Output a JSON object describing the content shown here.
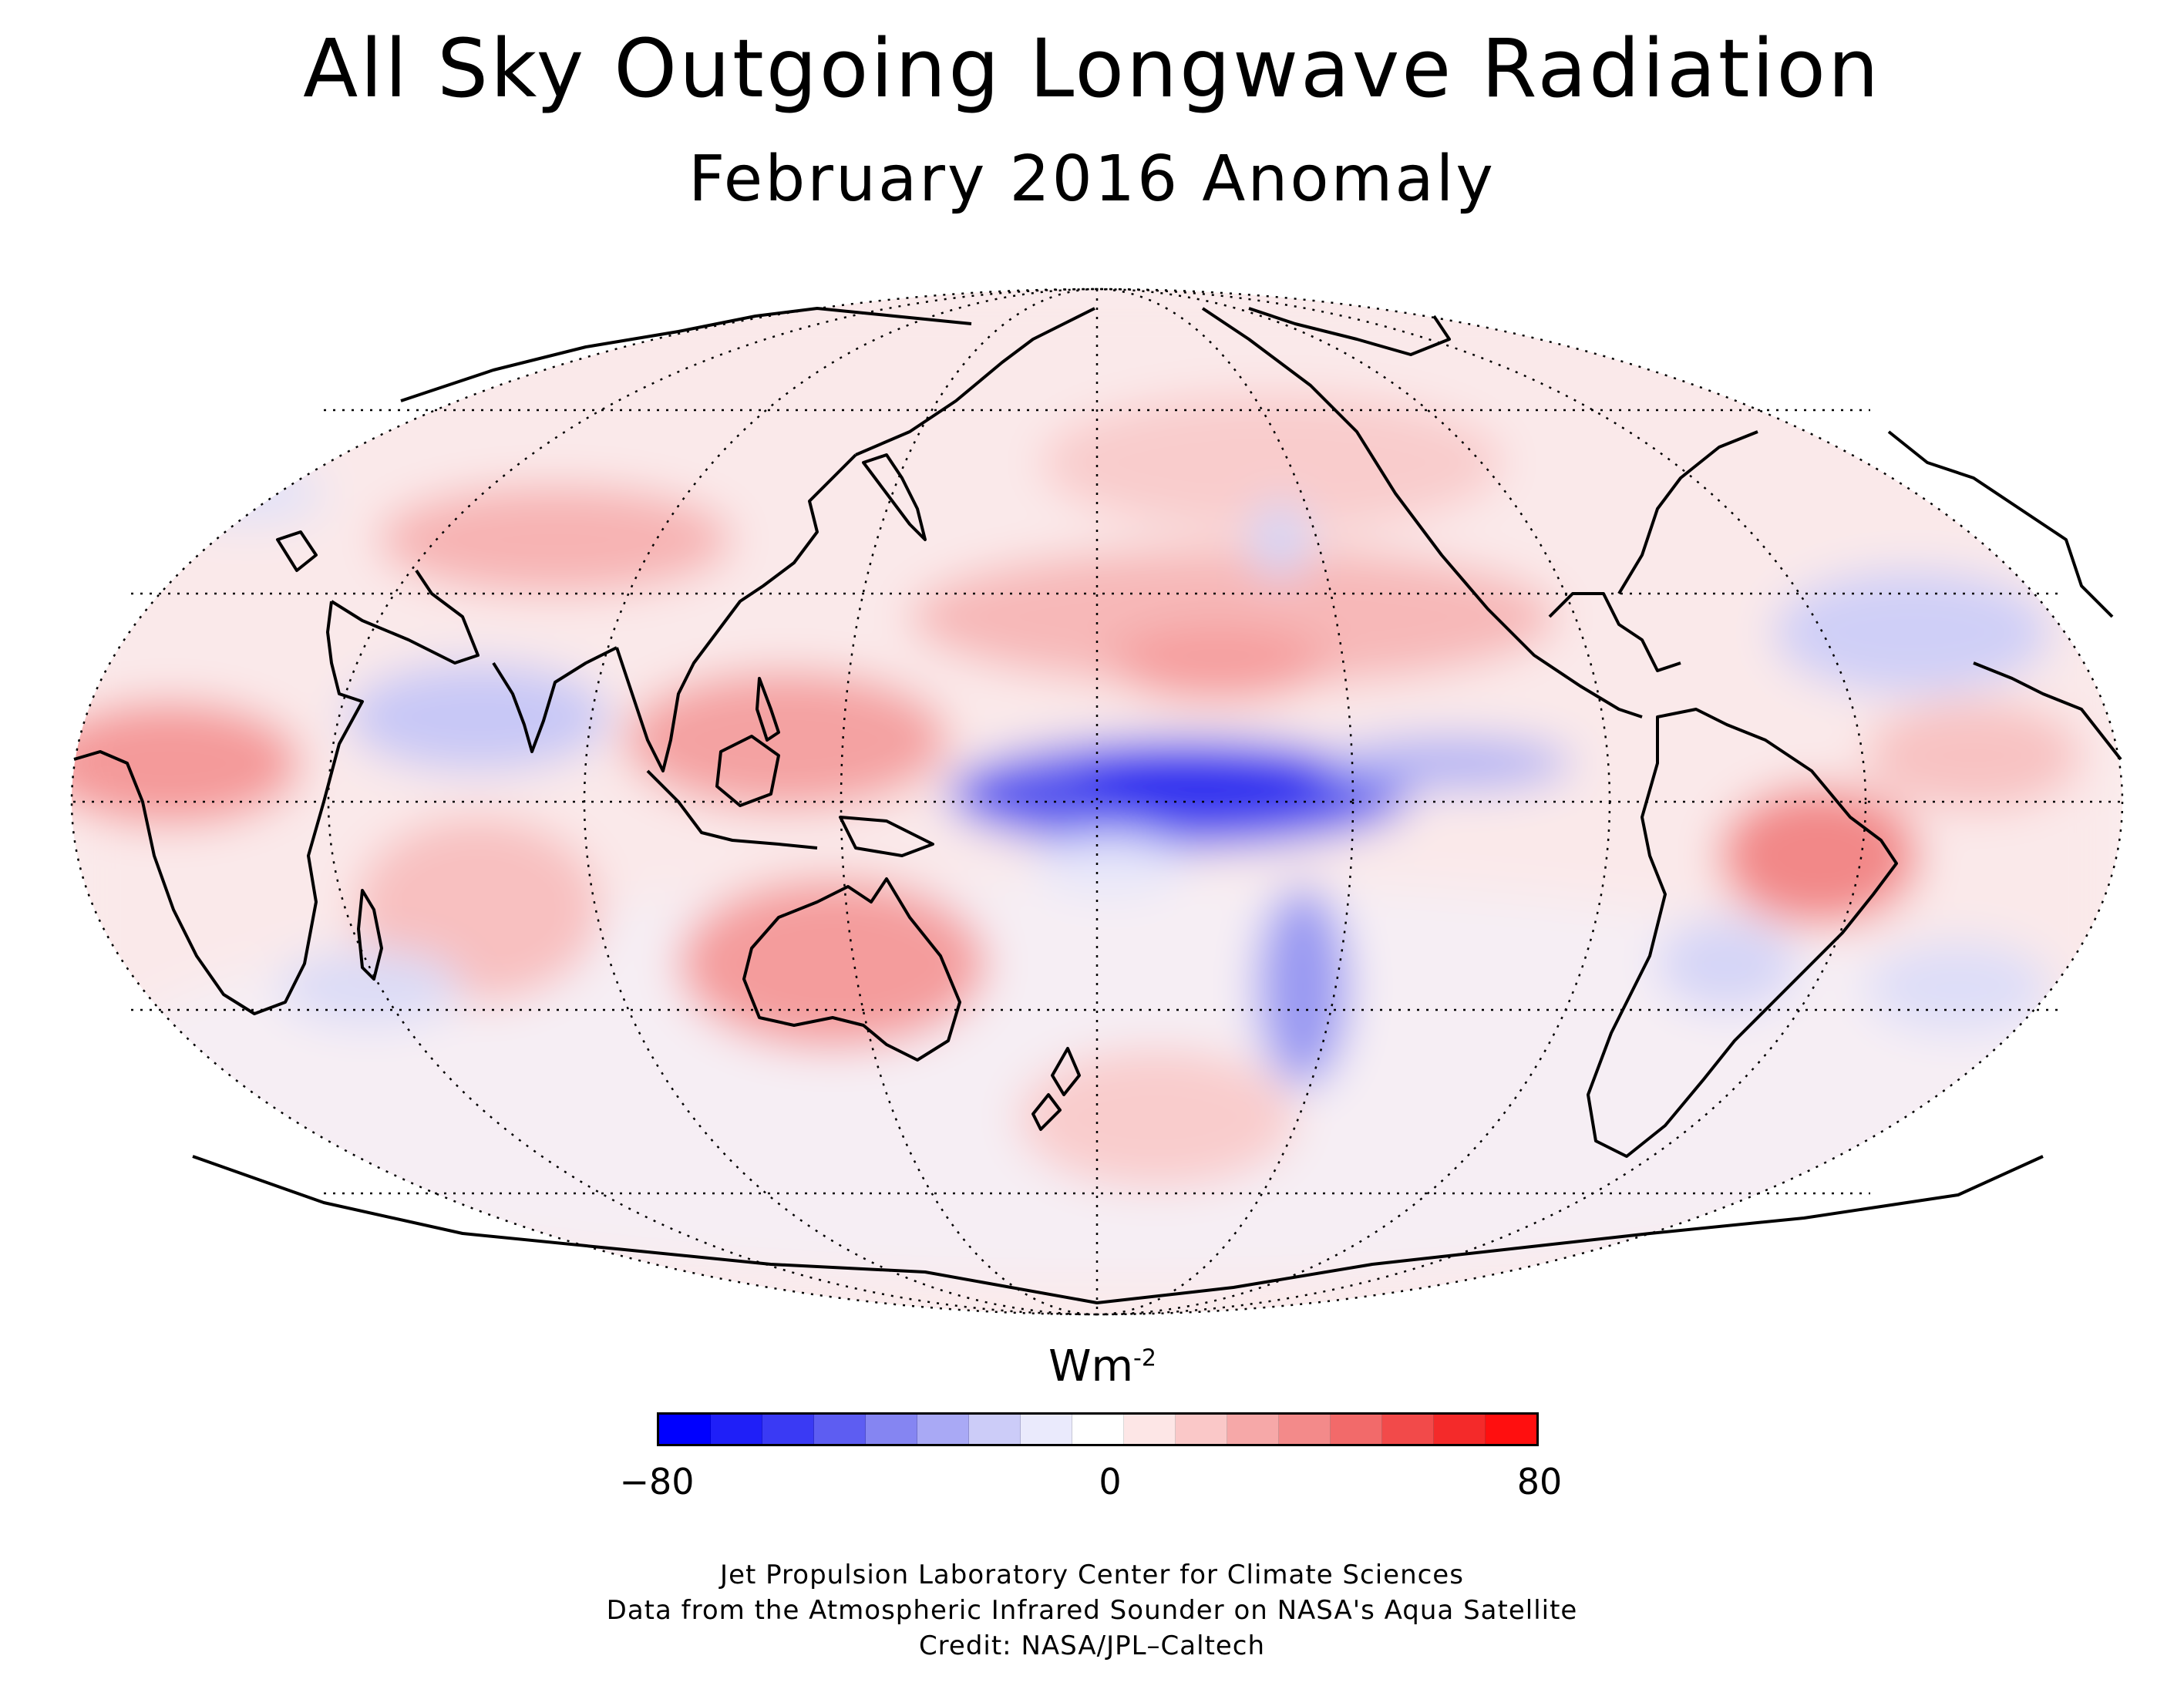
{
  "header": {
    "title": "All Sky Outgoing Longwave Radiation",
    "subtitle": "February 2016 Anomaly"
  },
  "map": {
    "projection": "Mollweide, Pacific-centered",
    "anomaly_regions": [
      {
        "region": "central equatorial Pacific",
        "sign": "negative",
        "level": -55
      },
      {
        "region": "western Pacific / Maritime Continent",
        "sign": "positive",
        "level": 30
      },
      {
        "region": "northern Australia",
        "sign": "positive",
        "level": 30
      },
      {
        "region": "eastern Brazil",
        "sign": "positive",
        "level": 40
      },
      {
        "region": "west Africa",
        "sign": "positive",
        "level": 30
      },
      {
        "region": "Indian Ocean",
        "sign": "negative",
        "level": -20
      },
      {
        "region": "South Pacific Convergence Zone",
        "sign": "negative",
        "level": -30
      }
    ],
    "colors": {
      "land_outline": "#000000",
      "graticule": "#000000"
    }
  },
  "legend": {
    "unit_base": "Wm",
    "unit_exp": "-2",
    "min_label": "−80",
    "mid_label": "0",
    "max_label": "80",
    "range": [
      -80,
      80
    ],
    "colors": [
      "#0000ff",
      "#1f1ff8",
      "#3a3af4",
      "#5d5df2",
      "#8585f2",
      "#a9a9f5",
      "#ccccf8",
      "#eaeafc",
      "#ffffff",
      "#fde6e6",
      "#fac8c8",
      "#f6a8a8",
      "#f38a8a",
      "#f26a6a",
      "#f24a4a",
      "#f42a2a",
      "#ff0f0f"
    ]
  },
  "credits": {
    "line1": "Jet Propulsion Laboratory Center for Climate Sciences",
    "line2": "Data from the Atmospheric Infrared Sounder on NASA's Aqua Satellite",
    "line3": "Credit: NASA/JPL–Caltech"
  }
}
